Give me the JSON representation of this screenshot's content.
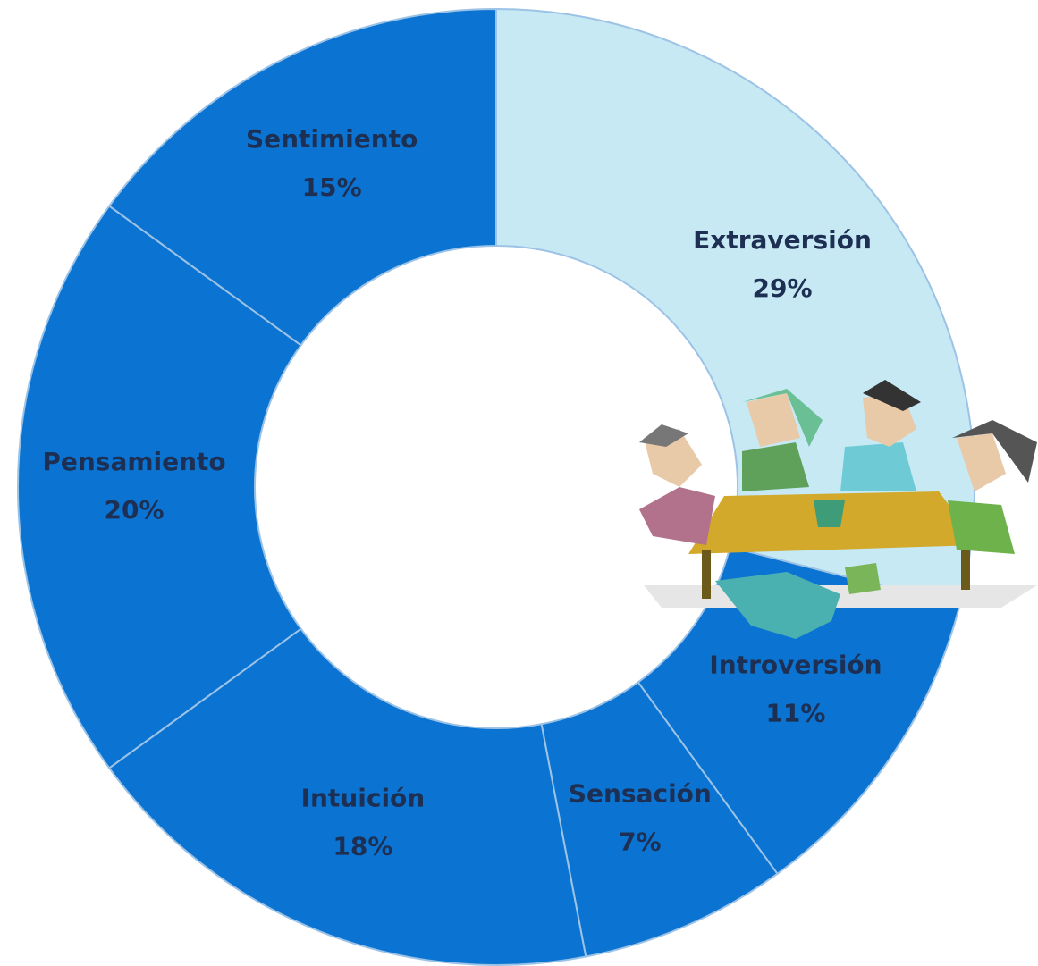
{
  "chart_data": {
    "type": "donut",
    "categories": [
      "Extraversión",
      "Introversión",
      "Sensación",
      "Intuición",
      "Pensamiento",
      "Sentimiento"
    ],
    "values": [
      29,
      11,
      7,
      18,
      20,
      15
    ],
    "value_labels": [
      "29%",
      "11%",
      "7%",
      "18%",
      "20%",
      "15%"
    ],
    "colors": [
      "#c6e9f4",
      "#0b74d2",
      "#0b74d2",
      "#0b74d2",
      "#0b74d2",
      "#0b74d2"
    ]
  }
}
